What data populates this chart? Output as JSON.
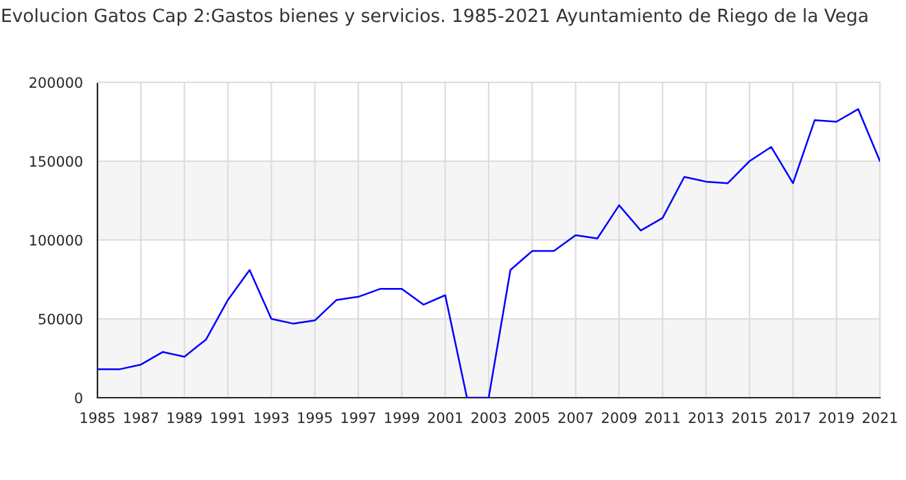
{
  "chart_data": {
    "type": "line",
    "title": "Evolucion Gatos Cap 2:Gastos bienes y servicios. 1985-2021 Ayuntamiento de Riego de la Vega",
    "x": [
      1985,
      1986,
      1987,
      1988,
      1989,
      1990,
      1991,
      1992,
      1993,
      1994,
      1995,
      1996,
      1997,
      1998,
      1999,
      2000,
      2001,
      2002,
      2003,
      2004,
      2005,
      2006,
      2007,
      2008,
      2009,
      2010,
      2011,
      2012,
      2013,
      2014,
      2015,
      2016,
      2017,
      2018,
      2019,
      2020,
      2021
    ],
    "series": [
      {
        "color": "#0000ff",
        "values": [
          18000,
          18000,
          21000,
          29000,
          26000,
          37000,
          62000,
          81000,
          50000,
          47000,
          49000,
          62000,
          64000,
          69000,
          69000,
          59000,
          65000,
          0,
          0,
          81000,
          93000,
          93000,
          103000,
          101000,
          122000,
          106000,
          114000,
          140000,
          137000,
          136000,
          150000,
          159000,
          136000,
          176000,
          175000,
          183000,
          150000
        ]
      }
    ],
    "xlim": [
      1985,
      2021
    ],
    "xticks": [
      1985,
      1987,
      1989,
      1991,
      1993,
      1995,
      1997,
      1999,
      2001,
      2003,
      2005,
      2007,
      2009,
      2011,
      2013,
      2015,
      2017,
      2019,
      2021
    ],
    "ylim": [
      0,
      200000
    ],
    "yticks": [
      0,
      50000,
      100000,
      150000,
      200000
    ],
    "bands": [
      {
        "axis": "y",
        "from": 0,
        "to": 50000,
        "color": "#f5f5f5"
      },
      {
        "axis": "y",
        "from": 100000,
        "to": 150000,
        "color": "#f5f5f5"
      }
    ],
    "grid": true,
    "marker": "none",
    "line_style": "solid"
  }
}
